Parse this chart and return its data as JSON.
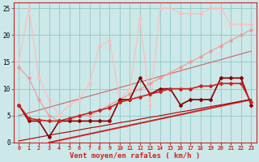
{
  "x": [
    0,
    1,
    2,
    3,
    4,
    5,
    6,
    7,
    8,
    9,
    10,
    11,
    12,
    13,
    14,
    15,
    16,
    17,
    18,
    19,
    20,
    21,
    22,
    23
  ],
  "line_darkred_scatter": [
    7,
    4,
    4,
    1,
    4,
    4,
    4,
    4,
    4,
    4,
    8,
    8,
    12,
    9,
    10,
    10,
    7,
    8,
    8,
    8,
    12,
    12,
    12,
    7
  ],
  "line_darkred_smooth": [
    7,
    4.5,
    4.2,
    4.0,
    4.0,
    4.5,
    5.0,
    5.5,
    6.0,
    6.5,
    7.5,
    8.0,
    8.5,
    9.0,
    9.5,
    10.0,
    10.0,
    10.0,
    10.5,
    10.5,
    11.0,
    11.0,
    11.0,
    7.5
  ],
  "line_trend_low": [
    0.3,
    0.65,
    1.0,
    1.35,
    1.7,
    2.0,
    2.35,
    2.7,
    3.0,
    3.35,
    3.7,
    4.0,
    4.35,
    4.7,
    5.0,
    5.35,
    5.7,
    6.0,
    6.35,
    6.7,
    7.0,
    7.35,
    7.7,
    8.0
  ],
  "line_trend_mid": [
    5.0,
    5.52,
    6.04,
    6.57,
    7.09,
    7.61,
    8.13,
    8.65,
    9.17,
    9.7,
    10.22,
    10.74,
    11.26,
    11.78,
    12.3,
    12.83,
    13.35,
    13.87,
    14.39,
    14.91,
    15.43,
    15.96,
    16.48,
    17.0
  ],
  "line_pink_upper": [
    15,
    25,
    12,
    8,
    5,
    7,
    8,
    11,
    18,
    19,
    8,
    10,
    23,
    7,
    25,
    25,
    24,
    24,
    24,
    25,
    25,
    22,
    22,
    22
  ],
  "line_pink_lower": [
    14,
    12,
    8,
    5,
    4,
    4,
    5,
    5,
    6,
    7,
    8,
    9,
    10,
    11,
    12,
    13,
    14,
    15,
    16,
    17,
    18,
    19,
    20,
    21
  ],
  "line_red_from3": {
    "x": [
      3,
      23
    ],
    "y": [
      0,
      8
    ]
  },
  "xlabel": "Vent moyen/en rafales ( km/h )",
  "bg_color": "#cce8e8",
  "grid_color": "#99cccc",
  "color_darkred": "#880000",
  "color_medred": "#cc2222",
  "color_pink_light": "#ee9999",
  "color_pink_lighter": "#ffbbbb",
  "color_trend_dark": "#aa0000",
  "color_trend_mid": "#cc6666",
  "ylim": [
    0,
    26
  ],
  "yticks": [
    0,
    5,
    10,
    15,
    20,
    25
  ]
}
